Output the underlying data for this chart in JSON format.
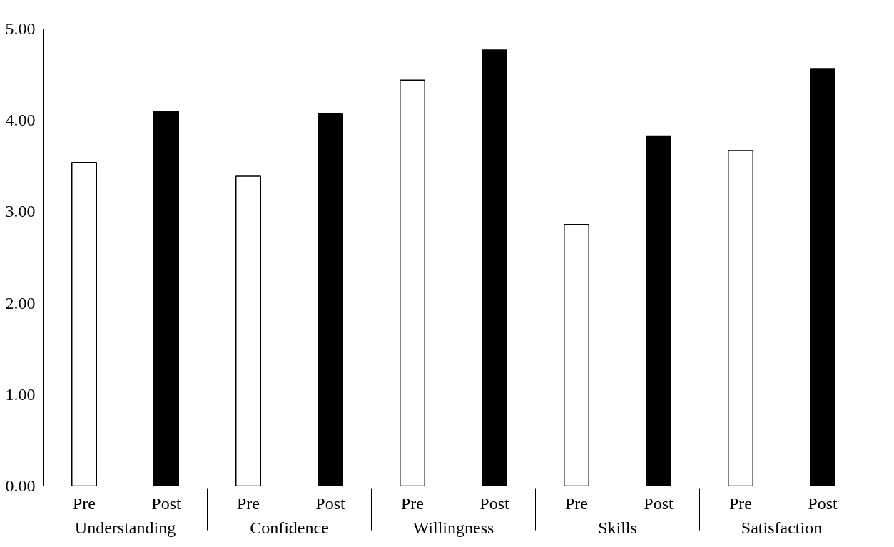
{
  "chart_data": {
    "type": "bar",
    "categories": [
      "Understanding",
      "Confidence",
      "Willingness",
      "Skills",
      "Satisfaction"
    ],
    "series": [
      {
        "name": "Pre",
        "color": "#ffffff",
        "values": [
          3.54,
          3.39,
          4.44,
          2.86,
          3.67
        ]
      },
      {
        "name": "Post",
        "color": "#000000",
        "values": [
          4.1,
          4.07,
          4.77,
          3.83,
          4.56
        ]
      }
    ],
    "ylim": [
      0,
      5
    ],
    "yticks": [
      {
        "value": 0,
        "label": "0.00"
      },
      {
        "value": 1,
        "label": "1.00"
      },
      {
        "value": 2,
        "label": "2.00"
      },
      {
        "value": 3,
        "label": "3.00"
      },
      {
        "value": 4,
        "label": "4.00"
      },
      {
        "value": 5,
        "label": "5.00"
      }
    ],
    "grid": false
  }
}
